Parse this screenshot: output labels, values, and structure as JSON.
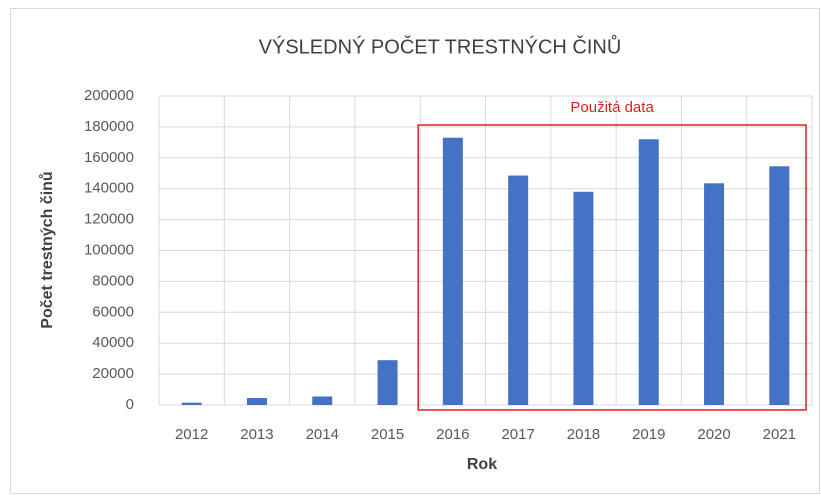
{
  "chart_data": {
    "type": "bar",
    "title": "VÝSLEDNÝ POČET TRESTNÝCH ČINŮ",
    "x_label": "Rok",
    "y_label": "Počet trestných činů",
    "categories": [
      "2012",
      "2013",
      "2014",
      "2015",
      "2016",
      "2017",
      "2018",
      "2019",
      "2020",
      "2021"
    ],
    "values": [
      1500,
      4500,
      5500,
      29000,
      173000,
      148500,
      138000,
      172000,
      143500,
      154500
    ],
    "color": "#4472c4",
    "ylim": [
      0,
      200000
    ],
    "yticks": [
      0,
      20000,
      40000,
      60000,
      80000,
      100000,
      120000,
      140000,
      160000,
      180000,
      200000
    ],
    "grid": true,
    "annotation": {
      "text": "Použitá data",
      "color": "#e02020",
      "from": "2016",
      "to": "2021"
    }
  }
}
